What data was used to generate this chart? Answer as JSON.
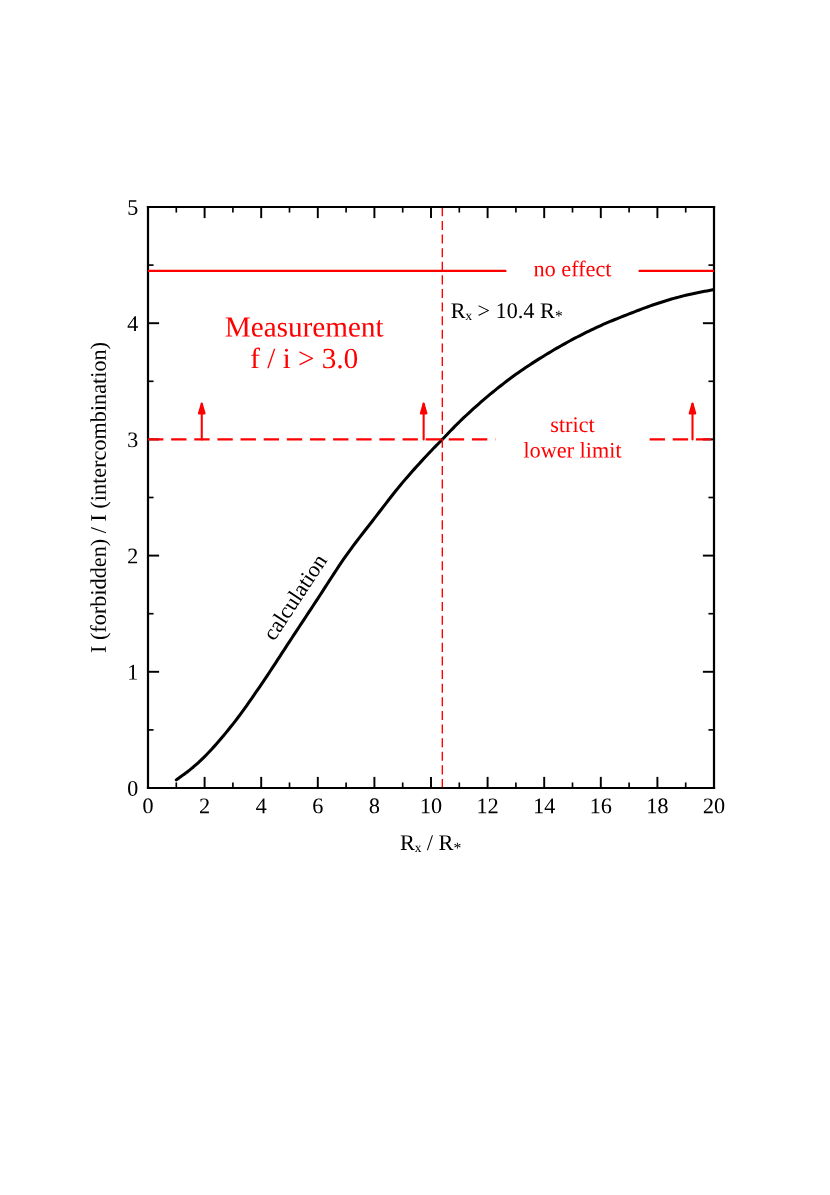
{
  "chart_data": {
    "type": "line",
    "xlabel": "Rₓ / R$_{*}$",
    "ylabel": "I (forbidden) / I (intercombination)",
    "xlim": [
      0,
      20
    ],
    "ylim": [
      0,
      5
    ],
    "xticks": [
      0,
      2,
      4,
      6,
      8,
      10,
      12,
      14,
      16,
      18,
      20
    ],
    "yticks": [
      0,
      1,
      2,
      3,
      4,
      5
    ],
    "series": [
      {
        "name": "calculation",
        "color": "#000000",
        "x": [
          1,
          1.5,
          2,
          3,
          4,
          5,
          6,
          7,
          8,
          9,
          10,
          10.4,
          11,
          12,
          13,
          14,
          15,
          16,
          17,
          18,
          19,
          20
        ],
        "values": [
          0.07,
          0.16,
          0.27,
          0.55,
          0.89,
          1.26,
          1.63,
          2.0,
          2.32,
          2.63,
          2.9,
          3.0,
          3.15,
          3.37,
          3.56,
          3.72,
          3.86,
          3.98,
          4.08,
          4.17,
          4.24,
          4.29
        ]
      }
    ],
    "ref_lines": [
      {
        "axis": "y",
        "value": 4.45,
        "label": "no effect",
        "color": "#ff0000",
        "line_style": "solid"
      },
      {
        "axis": "y",
        "value": 3,
        "label": "strict\nlower limit",
        "color": "#ff0000",
        "line_style": "dashed"
      },
      {
        "axis": "x",
        "value": 10.4,
        "label": "Rₓ > 10.4 R$_{*}$",
        "color": "#ff0000",
        "line_style": "dashed"
      }
    ],
    "annotations": [
      "Measurement\nf / i > 3.0"
    ]
  }
}
